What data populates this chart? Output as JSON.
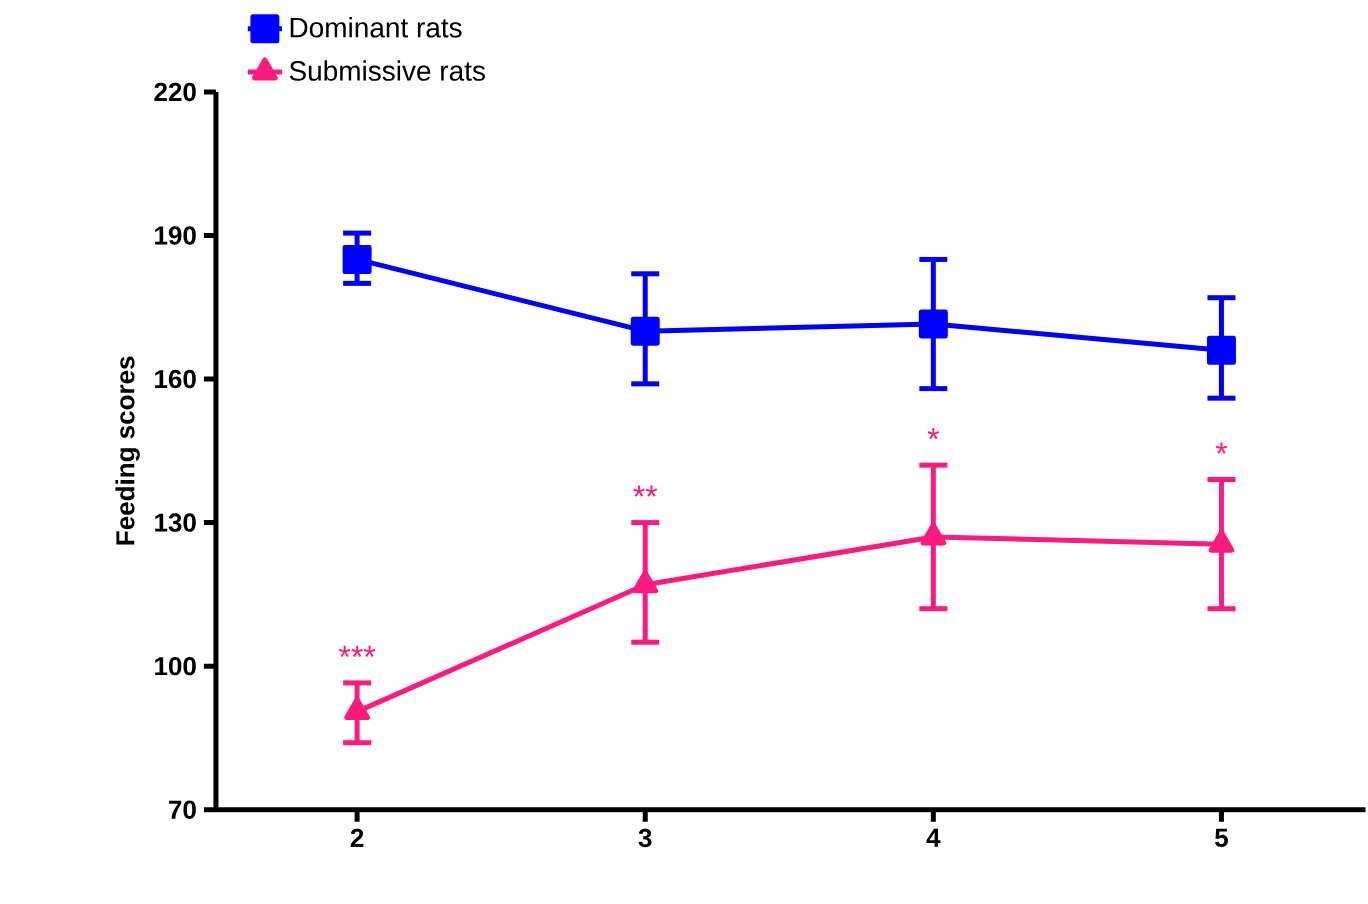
{
  "chart_data": {
    "type": "line",
    "ylabel": "Feeding scores",
    "categories": [
      "2",
      "3",
      "4",
      "5"
    ],
    "series": [
      {
        "name": "Dominant rats",
        "color": "#0000ff",
        "marker": "square",
        "values": [
          185,
          170,
          171.5,
          166
        ],
        "errors": [
          [
            180,
            190.5
          ],
          [
            159,
            182
          ],
          [
            158,
            185
          ],
          [
            156,
            177
          ]
        ]
      },
      {
        "name": "Submissive rats",
        "color": "#ff1a7f",
        "marker": "triangle",
        "values": [
          90.5,
          117,
          127,
          125.5
        ],
        "errors": [
          [
            84,
            96.5
          ],
          [
            105,
            130
          ],
          [
            112,
            142
          ],
          [
            112,
            139
          ]
        ]
      }
    ],
    "ylim": [
      70,
      220
    ],
    "yticks": [
      70,
      100,
      130,
      160,
      190,
      220
    ],
    "annotations": [
      "***",
      "**",
      "*",
      "*"
    ],
    "legend": "top left",
    "grid": false,
    "line_style": "solid"
  }
}
